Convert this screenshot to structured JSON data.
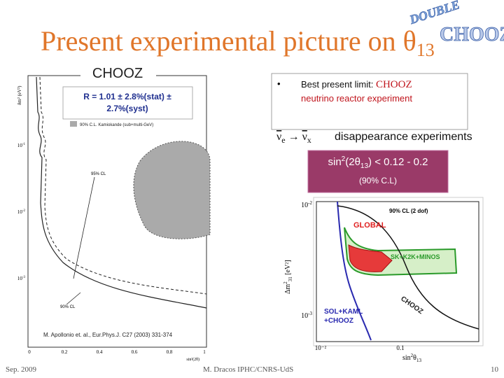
{
  "slide": {
    "title": {
      "text": "Present experimental picture on θ",
      "sub": "13"
    },
    "logo": {
      "top": "DOUBLE",
      "bottom": "CHOOZ"
    },
    "left_plot": {
      "label": "CHOOZ",
      "result": {
        "line1": "R = 1.01 ± 2.8%(stat) ±",
        "line2": "2.7%(syst)"
      },
      "y_axis_label": "δm² (eV²)",
      "x_axis_label": "sin²(2θ)",
      "y_ticks": [
        {
          "base": "10",
          "sup": "-1"
        },
        {
          "base": "10",
          "sup": "-2"
        },
        {
          "base": "10",
          "sup": "-3"
        }
      ],
      "x_ticks": [
        "0",
        "0.2",
        "0.4",
        "0.6",
        "0.8",
        "1"
      ],
      "legend": "90% C.L. Kamiokande (sub+multi-GeV)",
      "annotations": [
        "95% CL",
        "90% CL"
      ],
      "citation": "M. Apollonio et. al., Eur.Phys.J. C27 (2003) 331-374"
    },
    "bullet": {
      "prefix": "Best present limit: ",
      "highlight": "CHOOZ",
      "line2": "neutrino reactor experiment"
    },
    "channel": {
      "from": "ν",
      "from_sub": "e",
      "to": "ν",
      "to_sub": "x",
      "text": "disappearance experiments"
    },
    "limit_box": {
      "pre": "sin",
      "sup": "2",
      "mid": "(2θ",
      "sub": "13",
      "post": ") < 0.12 - 0.2",
      "cl": "(90% C.L)"
    },
    "right_plot": {
      "y_axis_label": {
        "base": "Δm",
        "sup": "2",
        "sub": "31",
        "unit": " [eV²]"
      },
      "x_axis_label": {
        "base": "sin",
        "sup": "2",
        "mid": "θ",
        "sub": "13"
      },
      "y_ticks": [
        {
          "base": "10",
          "sup": "-2"
        },
        {
          "base": "10",
          "sup": "-3"
        }
      ],
      "x_ticks": [
        "10⁻²",
        "0.1"
      ],
      "legend": "90% CL (2 dof)",
      "labels": [
        "GLOBAL",
        "SK+K2K+MINOS",
        "SOL+KAML",
        "+CHOOZ",
        "CHOOZ"
      ]
    },
    "footer": {
      "date": "Sep. 2009",
      "author": "M. Dracos IPHC/CNRS-UdS",
      "page": "10"
    }
  }
}
